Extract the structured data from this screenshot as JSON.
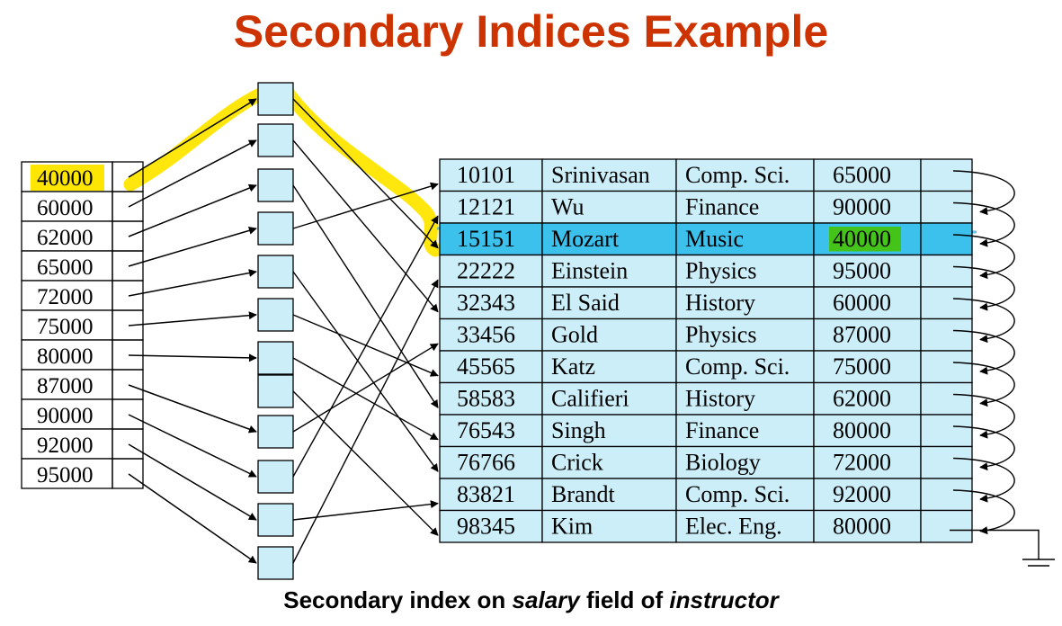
{
  "title": "Secondary Indices Example",
  "caption": {
    "part1": "Secondary index on ",
    "field": "salary",
    "part2": " field of ",
    "relation": "instructor"
  },
  "colors": {
    "title": "#cc3300",
    "cell_fill": "#cceef9",
    "row_highlight": "#3cc0ec",
    "marker_yellow": "#ffe600",
    "marker_green": "#44c41a",
    "cell_border": "#000000"
  },
  "index_values": [
    "40000",
    "60000",
    "62000",
    "65000",
    "72000",
    "75000",
    "80000",
    "87000",
    "90000",
    "92000",
    "95000"
  ],
  "highlighted_index_value": "40000",
  "highlighted_record_id": "15151",
  "records": [
    {
      "id": "10101",
      "name": "Srinivasan",
      "dept": "Comp. Sci.",
      "salary": "65000"
    },
    {
      "id": "12121",
      "name": "Wu",
      "dept": "Finance",
      "salary": "90000"
    },
    {
      "id": "15151",
      "name": "Mozart",
      "dept": "Music",
      "salary": "40000"
    },
    {
      "id": "22222",
      "name": "Einstein",
      "dept": "Physics",
      "salary": "95000"
    },
    {
      "id": "32343",
      "name": "El Said",
      "dept": "History",
      "salary": "60000"
    },
    {
      "id": "33456",
      "name": "Gold",
      "dept": "Physics",
      "salary": "87000"
    },
    {
      "id": "45565",
      "name": "Katz",
      "dept": "Comp. Sci.",
      "salary": "75000"
    },
    {
      "id": "58583",
      "name": "Califieri",
      "dept": "History",
      "salary": "62000"
    },
    {
      "id": "76543",
      "name": "Singh",
      "dept": "Finance",
      "salary": "80000"
    },
    {
      "id": "76766",
      "name": "Crick",
      "dept": "Biology",
      "salary": "72000"
    },
    {
      "id": "83821",
      "name": "Brandt",
      "dept": "Comp. Sci.",
      "salary": "92000"
    },
    {
      "id": "98345",
      "name": "Kim",
      "dept": "Elec. Eng.",
      "salary": "80000"
    }
  ]
}
